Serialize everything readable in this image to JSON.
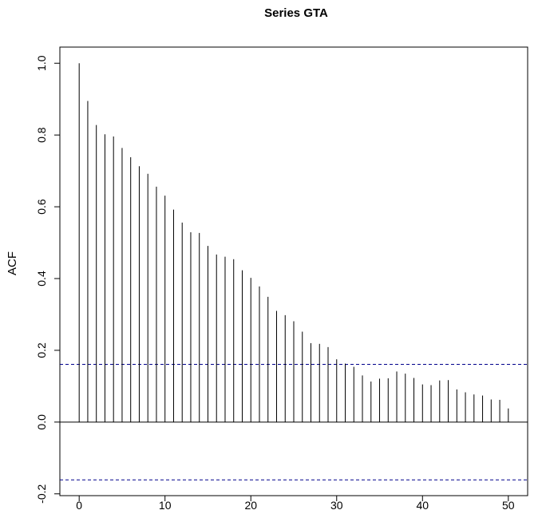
{
  "chart_data": {
    "type": "bar",
    "title": "Series  GTA",
    "xlabel": "",
    "ylabel": "ACF",
    "x": [
      0,
      1,
      2,
      3,
      4,
      5,
      6,
      7,
      8,
      9,
      10,
      11,
      12,
      13,
      14,
      15,
      16,
      17,
      18,
      19,
      20,
      21,
      22,
      23,
      24,
      25,
      26,
      27,
      28,
      29,
      30,
      31,
      32,
      33,
      34,
      35,
      36,
      37,
      38,
      39,
      40,
      41,
      42,
      43,
      44,
      45,
      46,
      47,
      48,
      49,
      50
    ],
    "values": [
      1.0,
      0.895,
      0.828,
      0.802,
      0.796,
      0.764,
      0.738,
      0.713,
      0.692,
      0.656,
      0.631,
      0.592,
      0.556,
      0.529,
      0.527,
      0.491,
      0.467,
      0.461,
      0.454,
      0.423,
      0.402,
      0.378,
      0.349,
      0.31,
      0.298,
      0.281,
      0.252,
      0.22,
      0.218,
      0.209,
      0.175,
      0.163,
      0.154,
      0.13,
      0.113,
      0.121,
      0.122,
      0.141,
      0.135,
      0.123,
      0.105,
      0.103,
      0.116,
      0.117,
      0.091,
      0.083,
      0.077,
      0.074,
      0.063,
      0.062,
      0.038
    ],
    "xlim": [
      -2.25,
      52.25
    ],
    "ylim": [
      -0.205,
      1.045
    ],
    "x_ticks": [
      0,
      10,
      20,
      30,
      40,
      50
    ],
    "x_tick_labels": [
      "0",
      "10",
      "20",
      "30",
      "40",
      "50"
    ],
    "y_ticks": [
      -0.2,
      0.0,
      0.2,
      0.4,
      0.6,
      0.8,
      1.0
    ],
    "y_tick_labels": [
      "-0.2",
      "0.0",
      "0.2",
      "0.4",
      "0.6",
      "0.8",
      "1.0"
    ],
    "confidence_bound": 0.161,
    "bar_color": "#000000",
    "bound_color": "#00008b",
    "grid": false,
    "legend": "none"
  }
}
